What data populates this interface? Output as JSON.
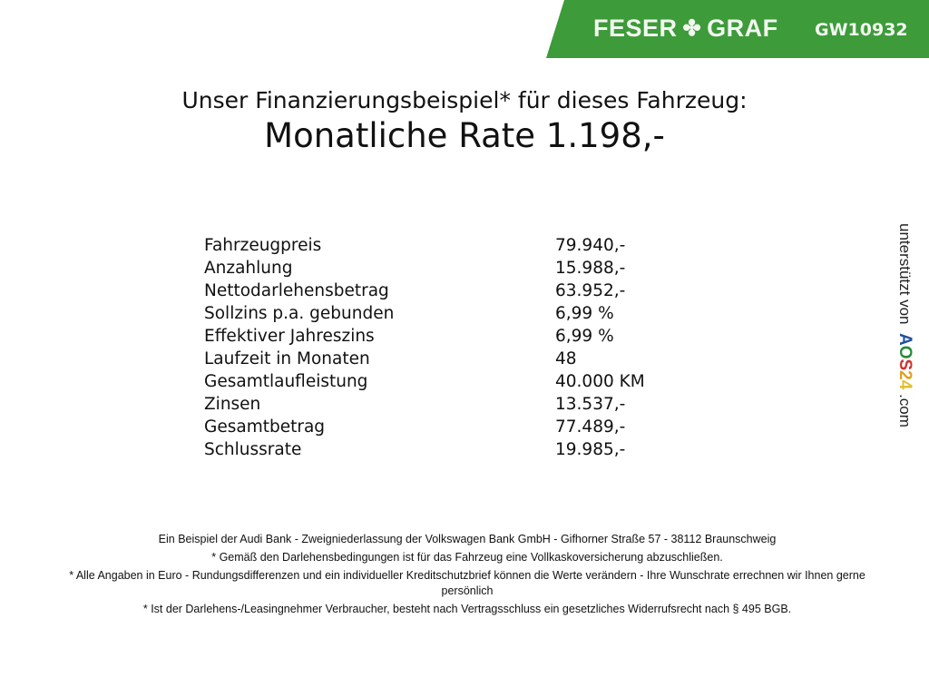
{
  "header": {
    "brand": "FESER",
    "brand2": "GRAF",
    "code": "GW10932",
    "color": "#3d9b3a",
    "icon": "clover-icon"
  },
  "title": {
    "line1": "Unser Finanzierungsbeispiel* für dieses Fahrzeug:",
    "line2": "Monatliche Rate 1.198,-"
  },
  "rows": [
    {
      "label": "Fahrzeugpreis",
      "value": "79.940,-"
    },
    {
      "label": "Anzahlung",
      "value": "15.988,-"
    },
    {
      "label": "Nettodarlehensbetrag",
      "value": "63.952,-"
    },
    {
      "label": "Sollzins p.a. gebunden",
      "value": "6,99 %"
    },
    {
      "label": "Effektiver Jahreszins",
      "value": "6,99 %"
    },
    {
      "label": "Laufzeit in Monaten",
      "value": "48"
    },
    {
      "label": "Gesamtlaufleistung",
      "value": "40.000 KM"
    },
    {
      "label": "Zinsen",
      "value": "13.537,-"
    },
    {
      "label": "Gesamtbetrag",
      "value": "77.489,-"
    },
    {
      "label": "Schlussrate",
      "value": "19.985,-"
    }
  ],
  "side": {
    "text": "unterstützt von",
    "logo": "AOS24",
    "domain": ".com"
  },
  "footer": [
    "Ein Beispiel der Audi Bank - Zweigniederlassung der Volkswagen Bank GmbH - Gifhorner Straße 57 - 38112 Braunschweig",
    "* Gemäß den Darlehensbedingungen ist für das Fahrzeug eine Vollkaskoversicherung abzuschließen.",
    "* Alle Angaben in Euro - Rundungsdifferenzen und ein individueller Kreditschutzbrief können die Werte verändern - Ihre Wunschrate errechnen wir Ihnen gerne persönlich",
    "* Ist der Darlehens-/Leasingnehmer Verbraucher, besteht nach Vertragsschluss ein gesetzliches Widerrufsrecht nach § 495 BGB."
  ]
}
